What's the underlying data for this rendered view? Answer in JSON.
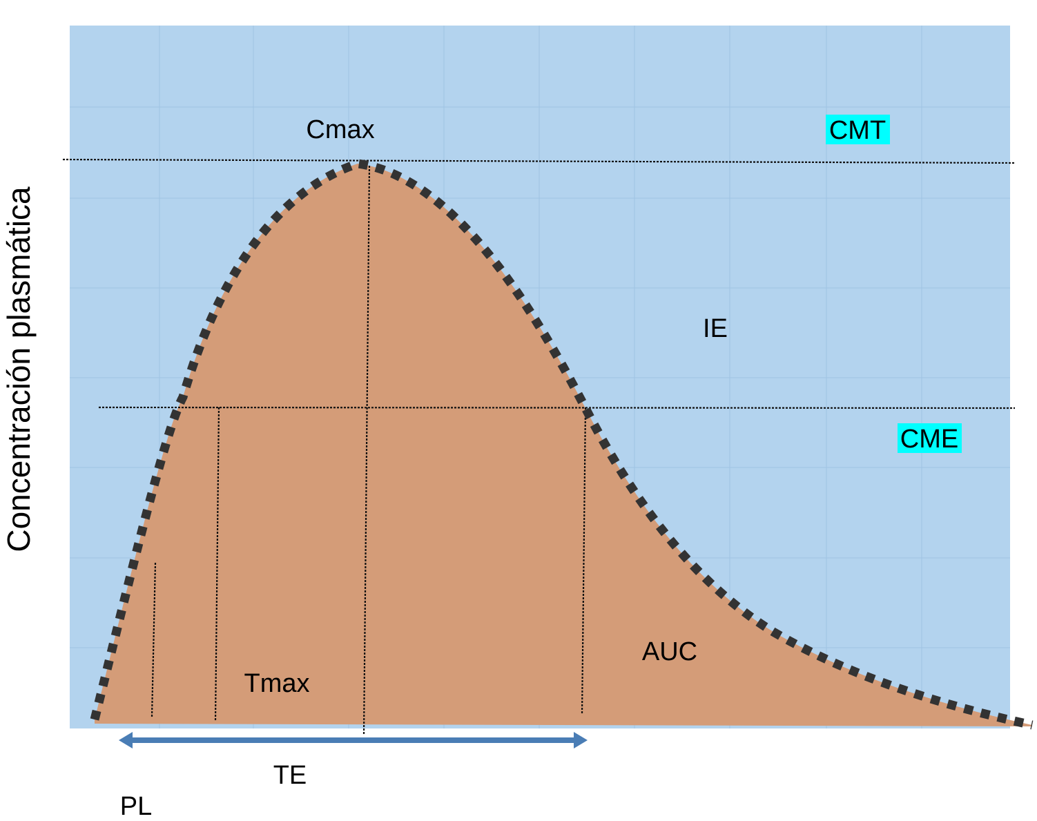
{
  "chart_data": {
    "type": "area",
    "title": "",
    "xlabel": "",
    "ylabel": "Concentración plasmática",
    "grid": true,
    "colors": {
      "background": "#b3d3ee",
      "grid": "#9fc3e3",
      "area_fill": "#d49c78",
      "curve": "#333333",
      "arrow": "#4a7db5",
      "highlight": "#00ffff"
    },
    "curve": {
      "shape": "pharmacokinetic concentration-time curve",
      "peak": "Cmax at Tmax"
    },
    "reference_lines": [
      {
        "label": "CMT",
        "highlight": true
      },
      {
        "label": "CME",
        "highlight": true
      }
    ],
    "annotations": {
      "cmax": "Cmax",
      "tmax": "Tmax",
      "ie": "IE",
      "auc": "AUC",
      "te": "TE",
      "pl": "PL"
    }
  }
}
